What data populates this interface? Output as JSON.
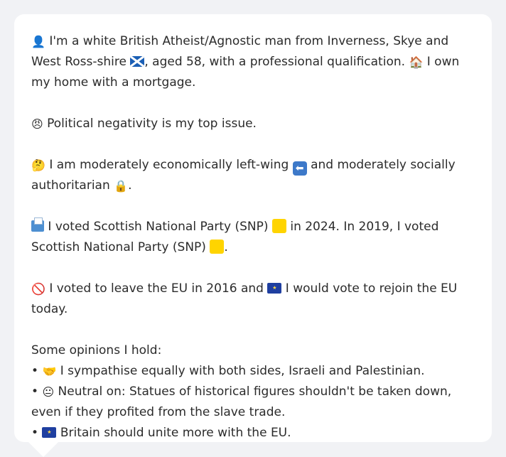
{
  "profile": {
    "intro": {
      "icon": "bust-silhouette-icon",
      "icon_glyph": "👤",
      "text_before_flag": "I'm a white British Atheist/Agnostic man from Inverness, Skye and West Ross-shire",
      "flag_icon": "scotland-flag-icon",
      "text_after_flag": ", aged 58, with a professional qualification.",
      "home_icon": "house-icon",
      "home_glyph": "🏠",
      "home_text": "I own my home with a mortgage."
    },
    "top_issue": {
      "icon": "angry-face-icon",
      "icon_glyph": "😠",
      "text": "Political negativity is my top issue."
    },
    "ideology": {
      "icon": "thinking-face-icon",
      "icon_glyph": "🤔",
      "text_before": "I am moderately economically left-wing",
      "left_arrow_icon": "left-arrow-icon",
      "left_arrow_glyph": "⬅",
      "text_middle": "and moderately socially authoritarian",
      "lock_icon": "lock-icon",
      "lock_glyph": "🔒",
      "text_end": "."
    },
    "voting": {
      "icon": "ballot-box-icon",
      "text_1": "I voted Scottish National Party (SNP)",
      "snp_color": "#FFD400",
      "text_2": "in 2024. In 2019, I voted Scottish National Party (SNP)",
      "text_end": "."
    },
    "eu": {
      "icon": "prohibited-icon",
      "icon_glyph": "🚫",
      "text_1": "I voted to leave the EU in 2016 and",
      "eu_flag_icon": "eu-flag-icon",
      "eu_flag_glyph": "★",
      "text_2": "I would vote to rejoin the EU today."
    },
    "opinions": {
      "heading": "Some opinions I hold:",
      "bullet": "•",
      "items": [
        {
          "icon": "handshake-icon",
          "icon_glyph": "🤝",
          "text": "I sympathise equally with both sides, Israeli and Palestinian."
        },
        {
          "icon": "neutral-face-icon",
          "icon_glyph": "😐",
          "text": "Neutral on: Statues of historical figures shouldn't be taken down, even if they profited from the slave trade."
        },
        {
          "icon": "eu-flag-icon",
          "icon_glyph": "★",
          "text": "Britain should unite more with the EU."
        }
      ]
    }
  }
}
